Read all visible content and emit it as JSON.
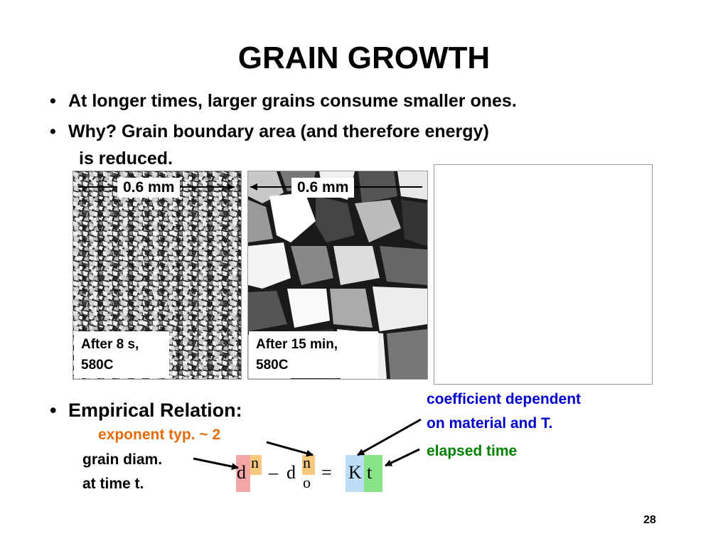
{
  "title": "GRAIN GROWTH",
  "bullets": [
    {
      "bullet": "•",
      "text": "At longer times, larger grains consume smaller ones."
    },
    {
      "bullet": "•",
      "text": "Why?  Grain boundary area (and therefore energy)"
    }
  ],
  "bullet2_cont": "is reduced.",
  "micrographs": [
    {
      "scale": "0.6 mm",
      "caption_line1": "After 8 s,",
      "caption_line2": "580C"
    },
    {
      "scale": "0.6 mm",
      "caption_line1": "After 15 min,",
      "caption_line2": "580C"
    }
  ],
  "empirical": {
    "bullet": "•",
    "text": "Empirical Relation:"
  },
  "annotations": {
    "exponent": "exponent typ. ~ 2",
    "grain_diam_line1": "grain diam.",
    "grain_diam_line2": "at time t.",
    "coeff_line1": "coefficient dependent",
    "coeff_line2": "on material and T.",
    "elapsed": "elapsed time"
  },
  "equation": {
    "d": "d",
    "n": "n",
    "minus": "–",
    "d0": "d",
    "o": "o",
    "n2": "n",
    "equals": "=",
    "K": "K",
    "t": "t"
  },
  "colors": {
    "exponent": "#e46c0a",
    "coeff": "#0000cc",
    "elapsed": "#008000",
    "hl_d": "#f4a6a6",
    "hl_n": "#f7c97f",
    "hl_K": "#bcdcf5",
    "hl_t": "#86e486"
  },
  "page_number": "28"
}
